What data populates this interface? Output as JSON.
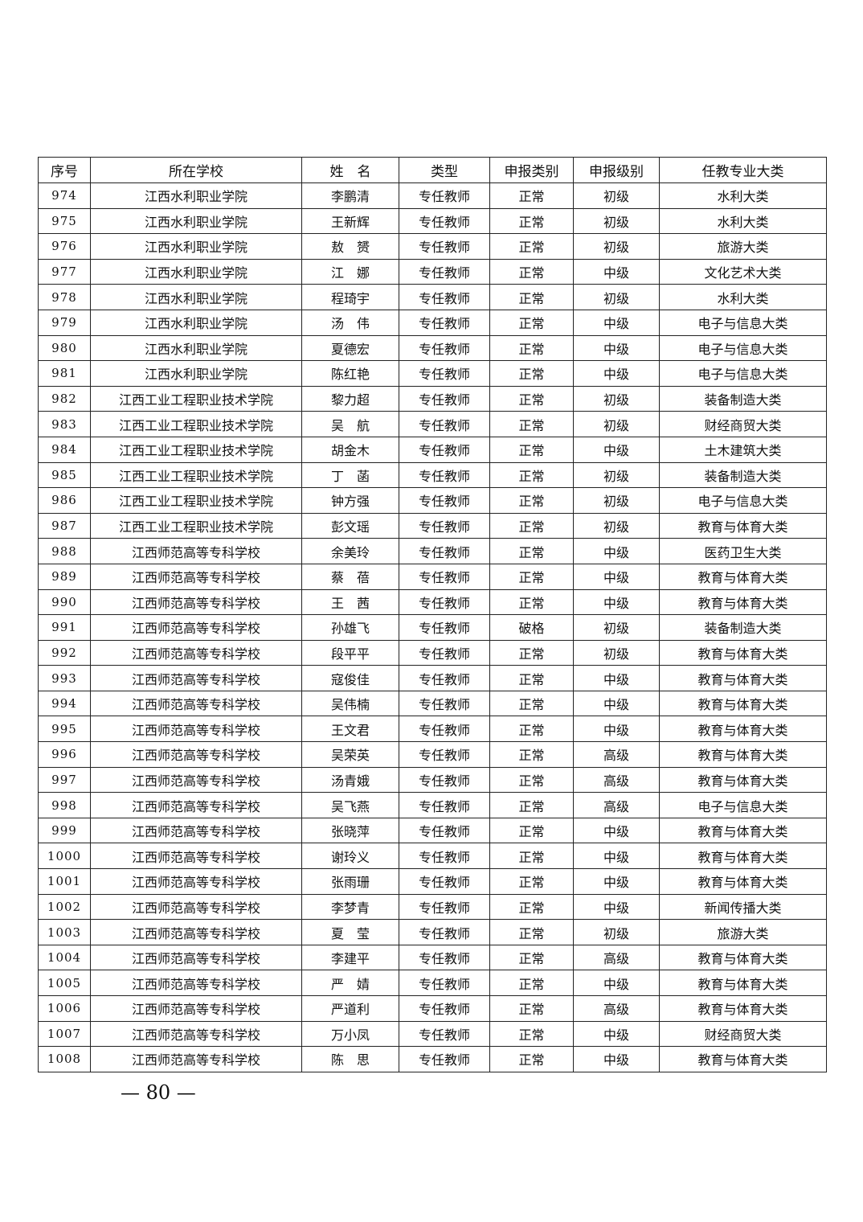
{
  "headers": [
    "序号",
    "所在学校",
    "姓　名",
    "类型",
    "申报类别",
    "申报级别",
    "任教专业大类"
  ],
  "rows": [
    [
      "974",
      "江西水利职业学院",
      "李鹏清",
      "专任教师",
      "正常",
      "初级",
      "水利大类"
    ],
    [
      "975",
      "江西水利职业学院",
      "王新辉",
      "专任教师",
      "正常",
      "初级",
      "水利大类"
    ],
    [
      "976",
      "江西水利职业学院",
      "敖　赟",
      "专任教师",
      "正常",
      "初级",
      "旅游大类"
    ],
    [
      "977",
      "江西水利职业学院",
      "江　娜",
      "专任教师",
      "正常",
      "中级",
      "文化艺术大类"
    ],
    [
      "978",
      "江西水利职业学院",
      "程琦宇",
      "专任教师",
      "正常",
      "初级",
      "水利大类"
    ],
    [
      "979",
      "江西水利职业学院",
      "汤　伟",
      "专任教师",
      "正常",
      "中级",
      "电子与信息大类"
    ],
    [
      "980",
      "江西水利职业学院",
      "夏德宏",
      "专任教师",
      "正常",
      "中级",
      "电子与信息大类"
    ],
    [
      "981",
      "江西水利职业学院",
      "陈红艳",
      "专任教师",
      "正常",
      "中级",
      "电子与信息大类"
    ],
    [
      "982",
      "江西工业工程职业技术学院",
      "黎力超",
      "专任教师",
      "正常",
      "初级",
      "装备制造大类"
    ],
    [
      "983",
      "江西工业工程职业技术学院",
      "吴　航",
      "专任教师",
      "正常",
      "初级",
      "财经商贸大类"
    ],
    [
      "984",
      "江西工业工程职业技术学院",
      "胡金木",
      "专任教师",
      "正常",
      "中级",
      "土木建筑大类"
    ],
    [
      "985",
      "江西工业工程职业技术学院",
      "丁　菡",
      "专任教师",
      "正常",
      "初级",
      "装备制造大类"
    ],
    [
      "986",
      "江西工业工程职业技术学院",
      "钟方强",
      "专任教师",
      "正常",
      "初级",
      "电子与信息大类"
    ],
    [
      "987",
      "江西工业工程职业技术学院",
      "彭文瑶",
      "专任教师",
      "正常",
      "初级",
      "教育与体育大类"
    ],
    [
      "988",
      "江西师范高等专科学校",
      "余美玲",
      "专任教师",
      "正常",
      "中级",
      "医药卫生大类"
    ],
    [
      "989",
      "江西师范高等专科学校",
      "蔡　蓓",
      "专任教师",
      "正常",
      "中级",
      "教育与体育大类"
    ],
    [
      "990",
      "江西师范高等专科学校",
      "王　茜",
      "专任教师",
      "正常",
      "中级",
      "教育与体育大类"
    ],
    [
      "991",
      "江西师范高等专科学校",
      "孙雄飞",
      "专任教师",
      "破格",
      "初级",
      "装备制造大类"
    ],
    [
      "992",
      "江西师范高等专科学校",
      "段平平",
      "专任教师",
      "正常",
      "初级",
      "教育与体育大类"
    ],
    [
      "993",
      "江西师范高等专科学校",
      "寇俊佳",
      "专任教师",
      "正常",
      "中级",
      "教育与体育大类"
    ],
    [
      "994",
      "江西师范高等专科学校",
      "吴伟楠",
      "专任教师",
      "正常",
      "中级",
      "教育与体育大类"
    ],
    [
      "995",
      "江西师范高等专科学校",
      "王文君",
      "专任教师",
      "正常",
      "中级",
      "教育与体育大类"
    ],
    [
      "996",
      "江西师范高等专科学校",
      "吴荣英",
      "专任教师",
      "正常",
      "高级",
      "教育与体育大类"
    ],
    [
      "997",
      "江西师范高等专科学校",
      "汤青娥",
      "专任教师",
      "正常",
      "高级",
      "教育与体育大类"
    ],
    [
      "998",
      "江西师范高等专科学校",
      "吴飞燕",
      "专任教师",
      "正常",
      "高级",
      "电子与信息大类"
    ],
    [
      "999",
      "江西师范高等专科学校",
      "张晓萍",
      "专任教师",
      "正常",
      "中级",
      "教育与体育大类"
    ],
    [
      "1000",
      "江西师范高等专科学校",
      "谢玲义",
      "专任教师",
      "正常",
      "中级",
      "教育与体育大类"
    ],
    [
      "1001",
      "江西师范高等专科学校",
      "张雨珊",
      "专任教师",
      "正常",
      "中级",
      "教育与体育大类"
    ],
    [
      "1002",
      "江西师范高等专科学校",
      "李梦青",
      "专任教师",
      "正常",
      "中级",
      "新闻传播大类"
    ],
    [
      "1003",
      "江西师范高等专科学校",
      "夏　莹",
      "专任教师",
      "正常",
      "初级",
      "旅游大类"
    ],
    [
      "1004",
      "江西师范高等专科学校",
      "李建平",
      "专任教师",
      "正常",
      "高级",
      "教育与体育大类"
    ],
    [
      "1005",
      "江西师范高等专科学校",
      "严　婧",
      "专任教师",
      "正常",
      "中级",
      "教育与体育大类"
    ],
    [
      "1006",
      "江西师范高等专科学校",
      "严道利",
      "专任教师",
      "正常",
      "高级",
      "教育与体育大类"
    ],
    [
      "1007",
      "江西师范高等专科学校",
      "万小凤",
      "专任教师",
      "正常",
      "中级",
      "财经商贸大类"
    ],
    [
      "1008",
      "江西师范高等专科学校",
      "陈　思",
      "专任教师",
      "正常",
      "中级",
      "教育与体育大类"
    ]
  ],
  "footer": "— 80 —"
}
